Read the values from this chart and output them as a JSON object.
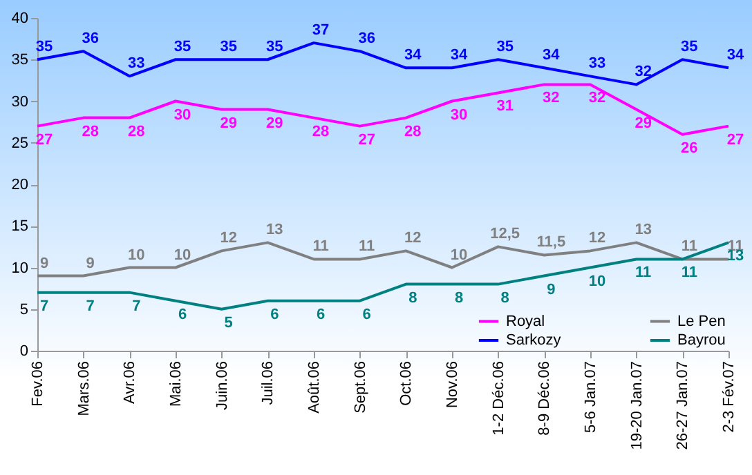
{
  "chart_data": {
    "type": "line",
    "categories": [
      "Fev.06",
      "Mars.06",
      "Avr.06",
      "Mai.06",
      "Juin.06",
      "Juil.06",
      "Août.06",
      "Sept.06",
      "Oct.06",
      "Nov.06",
      "1-2 Déc.06",
      "8-9 Déc.06",
      "5-6 Jan.07",
      "19-20 Jan.07",
      "26-27 Jan.07",
      "2-3 Fév.07"
    ],
    "series": [
      {
        "name": "Royal",
        "color": "#ff00ff",
        "values": [
          27,
          28,
          28,
          30,
          29,
          29,
          28,
          27,
          28,
          30,
          31,
          32,
          32,
          29,
          26,
          27
        ],
        "value_labels": [
          "27",
          "28",
          "28",
          "30",
          "29",
          "29",
          "28",
          "27",
          "28",
          "30",
          "31",
          "32",
          "32",
          "29",
          "26",
          "27"
        ]
      },
      {
        "name": "Sarkozy",
        "color": "#0000ff",
        "values": [
          35,
          36,
          33,
          35,
          35,
          35,
          37,
          36,
          34,
          34,
          35,
          34,
          33,
          32,
          35,
          34
        ],
        "value_labels": [
          "35",
          "36",
          "33",
          "35",
          "35",
          "35",
          "37",
          "36",
          "34",
          "34",
          "35",
          "34",
          "33",
          "32",
          "35",
          "34"
        ]
      },
      {
        "name": "Le Pen",
        "color": "#808080",
        "values": [
          9,
          9,
          10,
          10,
          12,
          13,
          11,
          11,
          12,
          10,
          12.5,
          11.5,
          12,
          13,
          11,
          11
        ],
        "value_labels": [
          "9",
          "9",
          "10",
          "10",
          "12",
          "13",
          "11",
          "11",
          "12",
          "10",
          "12,5",
          "11,5",
          "12",
          "13",
          "11",
          "11"
        ]
      },
      {
        "name": "Bayrou",
        "color": "#008080",
        "values": [
          7,
          7,
          7,
          6,
          5,
          6,
          6,
          6,
          8,
          8,
          8,
          9,
          10,
          11,
          11,
          13
        ],
        "value_labels": [
          "7",
          "7",
          "7",
          "6",
          "5",
          "6",
          "6",
          "6",
          "8",
          "8",
          "8",
          "9",
          "10",
          "11",
          "11",
          "13"
        ]
      }
    ],
    "ylim": [
      0,
      40
    ],
    "yticks": [
      0,
      5,
      10,
      15,
      20,
      25,
      30,
      35,
      40
    ],
    "grid": false,
    "legend": "bottom right",
    "marker": "none",
    "line_style": "solid"
  }
}
